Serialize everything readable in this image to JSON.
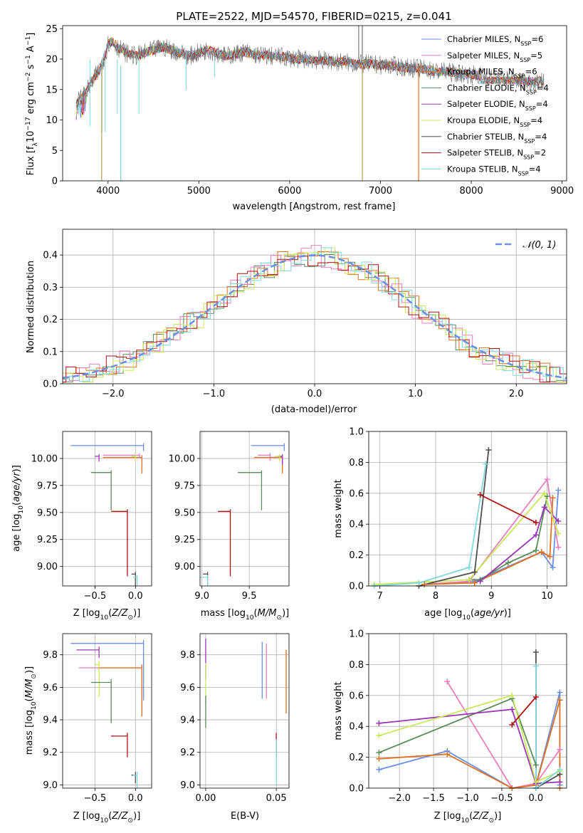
{
  "colors": {
    "chabrier_miles": "#6a8fe6",
    "salpeter_miles": "#e87fbd",
    "kroupa_miles": "#e0701f",
    "chabrier_elodie": "#5a8a5a",
    "salpeter_elodie": "#9b35b8",
    "kroupa_elodie": "#c8e85a",
    "chabrier_stelib": "#505050",
    "salpeter_stelib": "#b01010",
    "kroupa_stelib": "#7fd8dc",
    "gauss": "#6a8fe6",
    "grid": "#b0b0b0"
  },
  "chart_data": [
    {
      "id": "spectrum",
      "type": "line",
      "title": "PLATE=2522, MJD=54570, FIBERID=0215, z=0.041",
      "xlabel": "wavelength [Angstrom, rest frame]",
      "ylabel": "Flux [fλ10⁻¹⁷ erg cm⁻² s⁻¹ A⁻¹]",
      "xlim": [
        3500,
        9050
      ],
      "ylim": [
        0,
        25.5
      ],
      "xticks": [
        4000,
        5000,
        6000,
        7000,
        8000,
        9000
      ],
      "yticks": [
        0,
        5,
        10,
        15,
        20,
        25
      ],
      "grid": false,
      "legend_position": "top-right",
      "legend": [
        {
          "name": "Chabrier MILES, N_SSP=6",
          "base": "Chabrier MILES, N",
          "sub": "SSP",
          "tail": "=6",
          "color": "#6a8fe6"
        },
        {
          "name": "Salpeter MILES, N_SSP=5",
          "base": "Salpeter MILES, N",
          "sub": "SSP",
          "tail": "=5",
          "color": "#e87fbd"
        },
        {
          "name": "Kroupa MILES, N_SSP=6",
          "base": "Kroupa MILES, N",
          "sub": "SSP",
          "tail": "=6",
          "color": "#e0701f"
        },
        {
          "name": "Chabrier ELODIE, N_SSP=4",
          "base": "Chabrier ELODIE, N",
          "sub": "SSP",
          "tail": "=4",
          "color": "#5a8a5a"
        },
        {
          "name": "Salpeter ELODIE, N_SSP=4",
          "base": "Salpeter ELODIE, N",
          "sub": "SSP",
          "tail": "=4",
          "color": "#9b35b8"
        },
        {
          "name": "Kroupa ELODIE, N_SSP=4",
          "base": "Kroupa ELODIE, N",
          "sub": "SSP",
          "tail": "=4",
          "color": "#c8e85a"
        },
        {
          "name": "Chabrier STELIB, N_SSP=4",
          "base": "Chabrier STELIB, N",
          "sub": "SSP",
          "tail": "=4",
          "color": "#505050"
        },
        {
          "name": "Salpeter STELIB, N_SSP=2",
          "base": "Salpeter STELIB, N",
          "sub": "SSP",
          "tail": "=2",
          "color": "#b01010"
        },
        {
          "name": "Kroupa STELIB, N_SSP=4",
          "base": "Kroupa STELIB, N",
          "sub": "SSP",
          "tail": "=4",
          "color": "#7fd8dc"
        }
      ],
      "data_curve": {
        "description": "observed spectrum (grey) with model fits",
        "x": [
          3650,
          3700,
          3750,
          3800,
          3850,
          3900,
          3950,
          4000,
          4050,
          4100,
          4150,
          4200,
          4300,
          4400,
          4500,
          4600,
          4700,
          4800,
          4900,
          5000,
          5100,
          5200,
          5300,
          5400,
          5500,
          5600,
          5700,
          5800,
          5900,
          6000,
          6100,
          6200,
          6300,
          6400,
          6500,
          6600,
          6700,
          6800,
          6900,
          7000,
          7100,
          7200,
          7300,
          7400,
          7500,
          7600,
          7700,
          7800,
          7900,
          8000,
          8100,
          8200,
          8300,
          8400,
          8500,
          8600,
          8700,
          8800
        ],
        "y": [
          13.0,
          13.5,
          14.5,
          15.5,
          17.0,
          18.0,
          20.0,
          22.5,
          23.0,
          22.0,
          21.5,
          21.0,
          20.5,
          21.0,
          21.5,
          22.0,
          21.5,
          21.0,
          20.5,
          21.0,
          21.5,
          21.0,
          20.5,
          20.8,
          21.2,
          20.8,
          20.6,
          20.5,
          20.4,
          20.2,
          20.0,
          20.0,
          19.8,
          19.8,
          19.6,
          19.5,
          19.3,
          19.2,
          19.2,
          19.0,
          19.0,
          18.8,
          18.6,
          18.5,
          18.3,
          18.0,
          18.0,
          17.8,
          17.6,
          17.5,
          17.3,
          17.0,
          17.0,
          16.8,
          16.5,
          16.3,
          16.3,
          16.5
        ]
      },
      "dips": [
        {
          "x": 3930,
          "y": 0,
          "color": "#b8a050"
        },
        {
          "x": 4140,
          "y": 0,
          "color": "#7fd8dc"
        },
        {
          "x": 6800,
          "y": 0,
          "color": "#b8a050"
        },
        {
          "x": 7420,
          "y": 0,
          "color": "#e0701f"
        }
      ]
    },
    {
      "id": "residuals",
      "type": "line",
      "title": "",
      "xlabel": "(data-model)/error",
      "ylabel": "Normed distribution",
      "xlim": [
        -2.5,
        2.5
      ],
      "ylim": [
        0,
        0.48
      ],
      "xticks": [
        -2,
        -1,
        0,
        1,
        2
      ],
      "yticks": [
        0.0,
        0.1,
        0.2,
        0.3,
        0.4
      ],
      "grid": true,
      "legend_position": "top-right",
      "legend": [
        {
          "name": "N(0,1)",
          "label": "𝒩(0, 1)",
          "color": "#6a8fe6",
          "style": "dashed"
        }
      ],
      "gaussian": {
        "mean": 0,
        "sigma": 1
      }
    },
    {
      "id": "age_vs_z",
      "type": "scatter",
      "xlabel": "Z [log₁₀(Z/Z⊙)]",
      "ylabel": "age  [log₁₀(age/yr)]",
      "xlim": [
        -0.9,
        0.2
      ],
      "ylim": [
        8.82,
        10.25
      ],
      "xticks": [
        -0.5,
        0.0
      ],
      "yticks": [
        9.0,
        9.25,
        9.5,
        9.75,
        10.0
      ],
      "grid": true,
      "points": [
        {
          "x": 0.1,
          "y": 10.12,
          "xerr": 0.9,
          "yerr": 0.05,
          "color": "#6a8fe6"
        },
        {
          "x": 0.05,
          "y": 10.03,
          "xerr": 0.45,
          "yerr": 0.02,
          "color": "#e87fbd"
        },
        {
          "x": 0.08,
          "y": 10.01,
          "xerr": 0.48,
          "yerr": 0.15,
          "color": "#e0701f"
        },
        {
          "x": -0.3,
          "y": 9.87,
          "xerr": 0.25,
          "yerr": 0.35,
          "color": "#5a8a5a"
        },
        {
          "x": -0.45,
          "y": 10.02,
          "xerr": 0.05,
          "yerr": 0.05,
          "color": "#9b35b8"
        },
        {
          "x": 0.0,
          "y": 10.02,
          "xerr": 0.05,
          "yerr": 0.05,
          "color": "#c8e85a"
        },
        {
          "x": 0.0,
          "y": 8.93,
          "xerr": 0.05,
          "yerr": 0.52,
          "color": "#505050"
        },
        {
          "x": -0.1,
          "y": 9.51,
          "xerr": 0.2,
          "yerr": 0.6,
          "color": "#b01010"
        },
        {
          "x": 0.02,
          "y": 8.9,
          "xerr": 0.05,
          "yerr": 0.55,
          "color": "#7fd8dc"
        }
      ]
    },
    {
      "id": "age_vs_mass",
      "type": "scatter",
      "xlabel": "mass [log₁₀(M/M⊙)]",
      "ylabel": "",
      "xlim": [
        8.98,
        9.92
      ],
      "ylim": [
        8.82,
        10.25
      ],
      "xticks": [
        9.0,
        9.5
      ],
      "yticks": [
        9.0,
        9.25,
        9.5,
        9.75,
        10.0
      ],
      "grid": true,
      "points": [
        {
          "x": 9.87,
          "y": 10.12,
          "xerr": 0.35,
          "yerr": 0.05,
          "color": "#6a8fe6"
        },
        {
          "x": 9.72,
          "y": 10.03,
          "xerr": 0.13,
          "yerr": 0.05,
          "color": "#e87fbd"
        },
        {
          "x": 9.85,
          "y": 10.01,
          "xerr": 0.3,
          "yerr": 0.15,
          "color": "#e0701f"
        },
        {
          "x": 9.63,
          "y": 9.87,
          "xerr": 0.25,
          "yerr": 0.35,
          "color": "#5a8a5a"
        },
        {
          "x": 9.85,
          "y": 10.02,
          "xerr": 0.05,
          "yerr": 0.08,
          "color": "#9b35b8"
        },
        {
          "x": 9.82,
          "y": 10.02,
          "xerr": 0.05,
          "yerr": 0.05,
          "color": "#c8e85a"
        },
        {
          "x": 9.06,
          "y": 8.93,
          "xerr": 0.05,
          "yerr": 0.52,
          "color": "#505050"
        },
        {
          "x": 9.3,
          "y": 9.51,
          "xerr": 0.13,
          "yerr": 0.6,
          "color": "#b01010"
        },
        {
          "x": 9.06,
          "y": 8.9,
          "xerr": 0.2,
          "yerr": 0.55,
          "color": "#7fd8dc"
        }
      ]
    },
    {
      "id": "mass_weight_vs_age",
      "type": "line",
      "xlabel": "age  [log₁₀(age/yr)]",
      "ylabel": "mass weight",
      "xlim": [
        6.8,
        10.35
      ],
      "ylim": [
        0,
        1.0
      ],
      "xticks": [
        7,
        8,
        9,
        10
      ],
      "yticks": [
        0.0,
        0.2,
        0.4,
        0.6,
        0.8,
        1.0
      ],
      "grid": true,
      "series": [
        {
          "name": "Chabrier MILES",
          "color": "#6a8fe6",
          "x": [
            7.8,
            8.7,
            9.9,
            10.1,
            10.2
          ],
          "y": [
            0.01,
            0.03,
            0.22,
            0.12,
            0.62
          ]
        },
        {
          "name": "Salpeter MILES",
          "color": "#e87fbd",
          "x": [
            7.8,
            8.6,
            10.0,
            10.2
          ],
          "y": [
            0.01,
            0.03,
            0.69,
            0.25
          ]
        },
        {
          "name": "Kroupa MILES",
          "color": "#e0701f",
          "x": [
            7.8,
            8.7,
            9.9,
            10.05,
            10.1
          ],
          "y": [
            0.01,
            0.02,
            0.22,
            0.19,
            0.57
          ]
        },
        {
          "name": "Chabrier ELODIE",
          "color": "#5a8a5a",
          "x": [
            8.6,
            8.8,
            9.3,
            9.8,
            10.0
          ],
          "y": [
            0.04,
            0.04,
            0.15,
            0.23,
            0.58
          ]
        },
        {
          "name": "Salpeter ELODIE",
          "color": "#9b35b8",
          "x": [
            8.8,
            9.8,
            9.95,
            10.2
          ],
          "y": [
            0.03,
            0.33,
            0.51,
            0.42
          ]
        },
        {
          "name": "Kroupa ELODIE",
          "color": "#c8e85a",
          "x": [
            6.9,
            8.6,
            9.95,
            10.2
          ],
          "y": [
            0.01,
            0.04,
            0.6,
            0.34
          ]
        },
        {
          "name": "Chabrier STELIB",
          "color": "#505050",
          "x": [
            7.7,
            8.7,
            8.95
          ],
          "y": [
            0.0,
            0.09,
            0.88
          ]
        },
        {
          "name": "Salpeter STELIB",
          "color": "#b01010",
          "x": [
            8.8,
            9.8
          ],
          "y": [
            0.59,
            0.41
          ]
        },
        {
          "name": "Kroupa STELIB",
          "color": "#7fd8dc",
          "x": [
            6.9,
            7.7,
            8.6,
            8.9
          ],
          "y": [
            0.0,
            0.02,
            0.12,
            0.79
          ]
        }
      ]
    },
    {
      "id": "mass_vs_z",
      "type": "scatter",
      "xlabel": "Z [log₁₀(Z/Z⊙)]",
      "ylabel": "mass [log₁₀(M/M⊙)]",
      "xlim": [
        -0.9,
        0.2
      ],
      "ylim": [
        8.98,
        9.93
      ],
      "xticks": [
        -0.5,
        0.0
      ],
      "yticks": [
        9.0,
        9.2,
        9.4,
        9.6,
        9.8
      ],
      "grid": true,
      "points": [
        {
          "x": 0.1,
          "y": 9.87,
          "xerr": 0.9,
          "yerr": 0.35,
          "color": "#6a8fe6"
        },
        {
          "x": -0.45,
          "y": 9.83,
          "xerr": 0.28,
          "yerr": 0.05,
          "color": "#9b35b8"
        },
        {
          "x": 0.08,
          "y": 9.72,
          "xerr": 0.78,
          "yerr": 0.3,
          "color": "#e87fbd"
        },
        {
          "x": 0.08,
          "y": 9.72,
          "xerr": 0.55,
          "yerr": 0.3,
          "color": "#e0701f"
        },
        {
          "x": -0.45,
          "y": 9.74,
          "xerr": 0.05,
          "yerr": 0.2,
          "color": "#c8e85a"
        },
        {
          "x": -0.3,
          "y": 9.63,
          "xerr": 0.25,
          "yerr": 0.25,
          "color": "#5a8a5a"
        },
        {
          "x": -0.1,
          "y": 9.3,
          "xerr": 0.2,
          "yerr": 0.13,
          "color": "#b01010"
        },
        {
          "x": 0.0,
          "y": 9.06,
          "xerr": 0.05,
          "yerr": 0.05,
          "color": "#505050"
        },
        {
          "x": 0.02,
          "y": 9.06,
          "xerr": 0.05,
          "yerr": 0.2,
          "color": "#7fd8dc"
        }
      ]
    },
    {
      "id": "mass_vs_ebv",
      "type": "scatter",
      "xlabel": "E(B-V)",
      "ylabel": "",
      "xlim": [
        -0.004,
        0.059
      ],
      "ylim": [
        8.98,
        9.93
      ],
      "xticks": [
        0.0,
        0.05
      ],
      "yticks": [
        9.0,
        9.2,
        9.4,
        9.6,
        9.8
      ],
      "grid": true,
      "vlines": [
        {
          "x": 0.0,
          "y0": 9.65,
          "y1": 9.9,
          "color": "#9b35b8"
        },
        {
          "x": 0.0,
          "y0": 9.5,
          "y1": 9.75,
          "color": "#c8e85a"
        },
        {
          "x": 0.0,
          "y0": 9.35,
          "y1": 9.55,
          "color": "#5a8a5a"
        },
        {
          "x": 0.04,
          "y0": 9.53,
          "y1": 9.88,
          "color": "#6a8fe6"
        },
        {
          "x": 0.043,
          "y0": 9.53,
          "y1": 9.87,
          "color": "#e87fbd"
        },
        {
          "x": 0.057,
          "y0": 9.44,
          "y1": 9.83,
          "color": "#e0701f"
        },
        {
          "x": 0.05,
          "y0": 9.17,
          "y1": 9.32,
          "color": "#b01010"
        },
        {
          "x": 0.05,
          "y0": 9.0,
          "y1": 9.28,
          "color": "#7fd8dc"
        }
      ]
    },
    {
      "id": "mass_weight_vs_z",
      "type": "line",
      "xlabel": "Z [log₁₀(Z/Z⊙)]",
      "ylabel": "mass weight",
      "xlim": [
        -2.45,
        0.45
      ],
      "ylim": [
        0,
        1.0
      ],
      "xticks": [
        -2.0,
        -1.5,
        -1.0,
        -0.5,
        0.0
      ],
      "yticks": [
        0.0,
        0.2,
        0.4,
        0.6,
        0.8,
        1.0
      ],
      "grid": true,
      "series": [
        {
          "name": "Chabrier MILES",
          "color": "#6a8fe6",
          "x": [
            -2.3,
            -1.3,
            -0.35,
            0.0,
            0.35,
            0.35
          ],
          "y": [
            0.12,
            0.24,
            0.0,
            0.02,
            0.62,
            0.02
          ]
        },
        {
          "name": "Salpeter MILES",
          "color": "#e87fbd",
          "x": [
            -1.3,
            -0.35,
            0.0,
            0.35
          ],
          "y": [
            0.69,
            0.0,
            0.03,
            0.25
          ]
        },
        {
          "name": "Kroupa MILES",
          "color": "#e0701f",
          "x": [
            -2.3,
            -1.3,
            -0.35,
            0.0,
            0.35,
            0.35
          ],
          "y": [
            0.19,
            0.22,
            0.0,
            0.02,
            0.57,
            0.0
          ]
        },
        {
          "name": "Chabrier ELODIE",
          "color": "#5a8a5a",
          "x": [
            -2.3,
            -0.35,
            0.0
          ],
          "y": [
            0.23,
            0.58,
            0.15
          ]
        },
        {
          "name": "Salpeter ELODIE",
          "color": "#9b35b8",
          "x": [
            -2.3,
            -0.35,
            0.0,
            0.35
          ],
          "y": [
            0.42,
            0.51,
            0.03,
            0.04
          ]
        },
        {
          "name": "Kroupa ELODIE",
          "color": "#c8e85a",
          "x": [
            -2.3,
            -0.35,
            0.0,
            0.35
          ],
          "y": [
            0.34,
            0.6,
            0.04,
            0.11
          ]
        },
        {
          "name": "Chabrier STELIB",
          "color": "#505050",
          "x": [
            0.0,
            0.0,
            0.35
          ],
          "y": [
            0.88,
            0.0,
            0.09
          ]
        },
        {
          "name": "Salpeter STELIB",
          "color": "#b01010",
          "x": [
            -0.35,
            0.0
          ],
          "y": [
            0.41,
            0.59
          ]
        },
        {
          "name": "Kroupa STELIB",
          "color": "#7fd8dc",
          "x": [
            0.0,
            0.0,
            0.35
          ],
          "y": [
            0.79,
            0.0,
            0.12
          ]
        }
      ]
    }
  ]
}
